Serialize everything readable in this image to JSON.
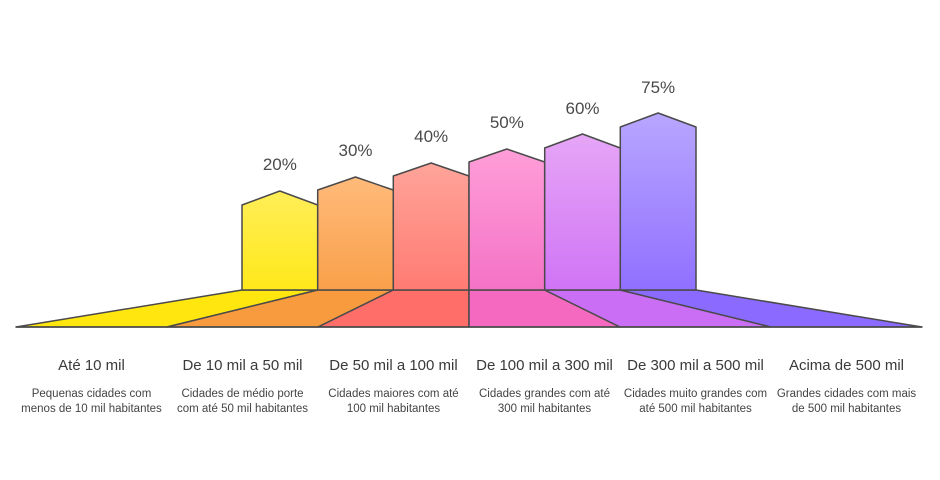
{
  "categories": [
    {
      "label": "Até 10 mil",
      "description": "Pequenas cidades com menos de 10 mil habitantes",
      "value": "20%",
      "top_color": "#FFEE58",
      "bottom_color": "#FFE81A",
      "floor_color": "#FFE60F"
    },
    {
      "label": "De 10 mil a 50 mil",
      "description": "Cidades de médio porte com até 50 mil habitantes",
      "value": "30%",
      "top_color": "#FFBA7A",
      "bottom_color": "#F9A04A",
      "floor_color": "#F89A3E"
    },
    {
      "label": "De 50 mil a 100 mil",
      "description": "Cidades maiores com até 100 mil habitantes",
      "value": "40%",
      "top_color": "#FFA49A",
      "bottom_color": "#FF7B72",
      "floor_color": "#FF6E68"
    },
    {
      "label": "De 100 mil a 300 mil",
      "description": "Cidades grandes com até 300 mil habitantes",
      "value": "50%",
      "top_color": "#FF9ED8",
      "bottom_color": "#F472C6",
      "floor_color": "#F56AC0"
    },
    {
      "label": "De 300 mil a 500 mil",
      "description": "Cidades muito grandes com até 500 mil habitantes",
      "value": "60%",
      "top_color": "#E6A6F6",
      "bottom_color": "#D074F6",
      "floor_color": "#CA6EF5"
    },
    {
      "label": "Acima de 500 mil",
      "description": "Grandes cidades com mais de 500 mil habitantes",
      "value": "75%",
      "top_color": "#B8A6FF",
      "bottom_color": "#9070FF",
      "floor_color": "#8B6BFF"
    }
  ],
  "outline_color": "#4a4a4a"
}
